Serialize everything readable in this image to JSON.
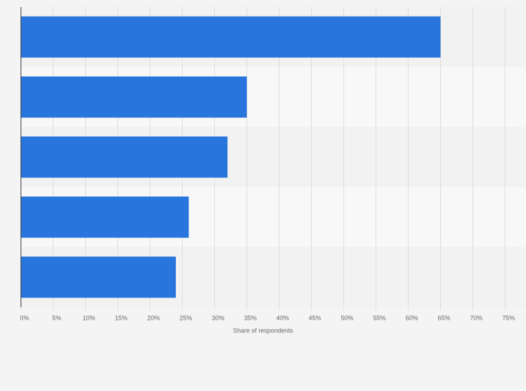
{
  "chart_data": {
    "type": "bar",
    "orientation": "horizontal",
    "x_label": "Share of respondents",
    "categories": [
      null,
      null,
      null,
      null,
      null
    ],
    "values": [
      65,
      35,
      32,
      26,
      24
    ],
    "color": "#2876dd",
    "xlim": [
      0,
      75
    ],
    "xticks": [
      {
        "value": 0,
        "label": "0%"
      },
      {
        "value": 5,
        "label": "5%"
      },
      {
        "value": 10,
        "label": "10%"
      },
      {
        "value": 15,
        "label": "15%"
      },
      {
        "value": 20,
        "label": "20%"
      },
      {
        "value": 25,
        "label": "25%"
      },
      {
        "value": 30,
        "label": "30%"
      },
      {
        "value": 35,
        "label": "35%"
      },
      {
        "value": 40,
        "label": "40%"
      },
      {
        "value": 45,
        "label": "45%"
      },
      {
        "value": 50,
        "label": "50%"
      },
      {
        "value": 55,
        "label": "55%"
      },
      {
        "value": 60,
        "label": "60%"
      },
      {
        "value": 65,
        "label": "65%"
      },
      {
        "value": 70,
        "label": "70%"
      },
      {
        "value": 75,
        "label": "75%"
      }
    ],
    "grid": true
  }
}
